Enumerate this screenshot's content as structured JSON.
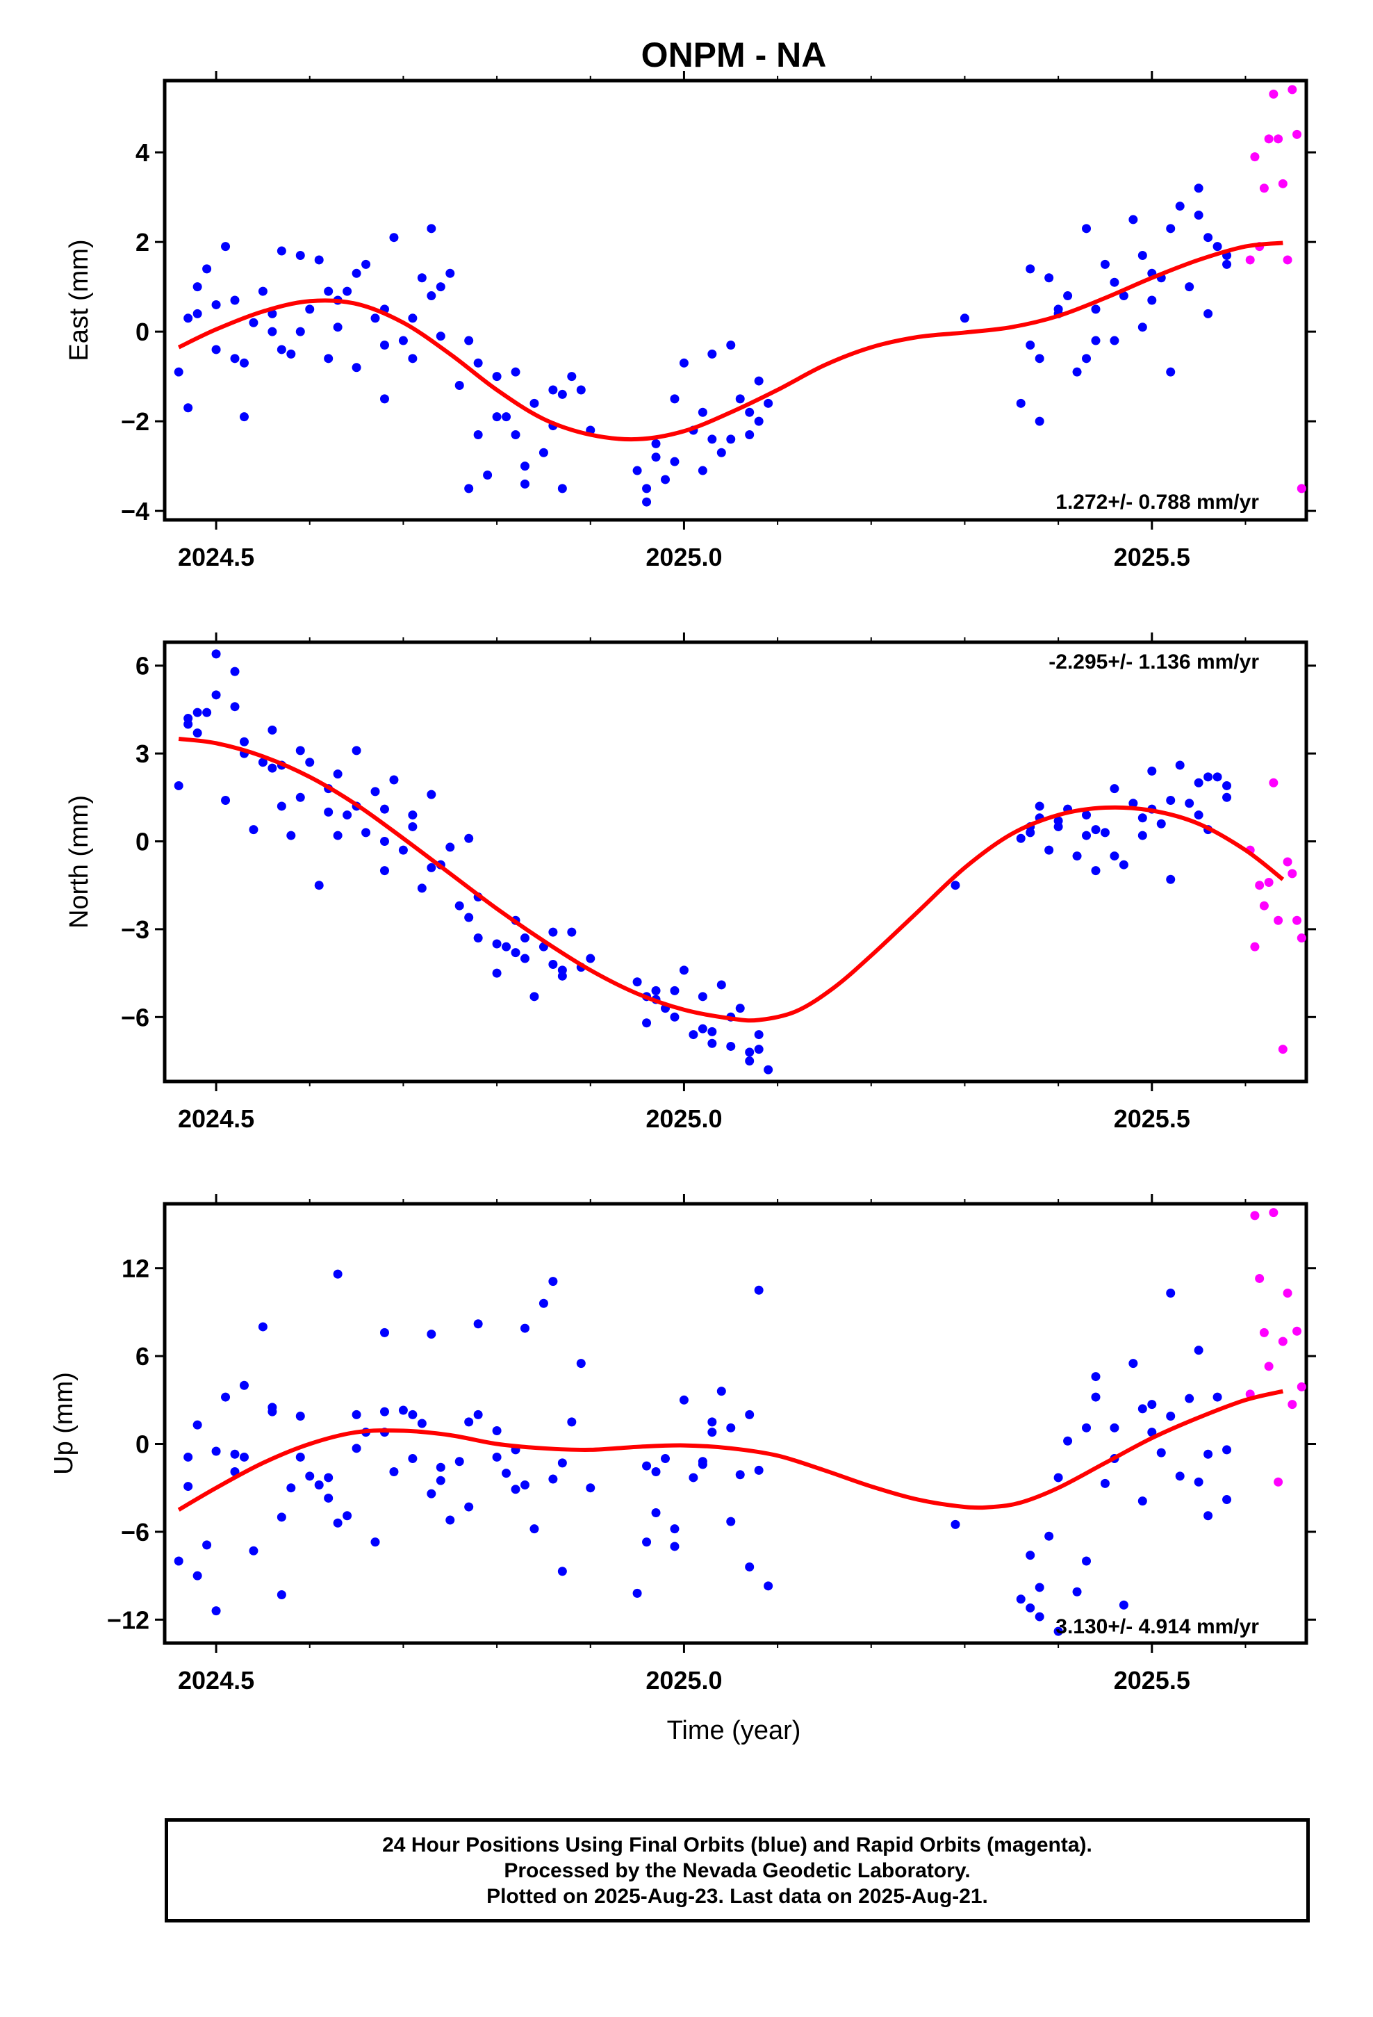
{
  "title": "ONPM - NA",
  "xlabel": "Time (year)",
  "footer": {
    "line1": "24 Hour Positions Using Final Orbits (blue) and Rapid Orbits (magenta).",
    "line2": "Processed by the Nevada Geodetic Laboratory.",
    "line3": "Plotted on 2025-Aug-23. Last data on 2025-Aug-21."
  },
  "colors": {
    "final": "#0000ff",
    "rapid": "#ff00ff",
    "model": "#ff0000"
  },
  "chart_data": [
    {
      "type": "scatter",
      "ylabel": "East (mm)",
      "xlim": [
        2024.445,
        2025.665
      ],
      "ylim": [
        -4.2,
        5.6
      ],
      "x_ticks": [
        2024.5,
        2025.0,
        2025.5
      ],
      "x_tick_labels": [
        "2024.5",
        "2025.0",
        "2025.5"
      ],
      "y_ticks": [
        -4,
        -2,
        0,
        2,
        4
      ],
      "y_tick_labels": [
        "−4",
        "−2",
        "0",
        "2",
        "4"
      ],
      "rate": "1.272+/- 0.788 mm/yr",
      "model": {
        "x": [
          2024.46,
          2024.5,
          2024.55,
          2024.6,
          2024.65,
          2024.7,
          2024.75,
          2024.8,
          2024.85,
          2024.9,
          2024.95,
          2025.0,
          2025.05,
          2025.1,
          2025.15,
          2025.2,
          2025.25,
          2025.3,
          2025.35,
          2025.4,
          2025.45,
          2025.5,
          2025.55,
          2025.6,
          2025.64
        ],
        "y": [
          -0.35,
          0.05,
          0.45,
          0.68,
          0.62,
          0.2,
          -0.5,
          -1.3,
          -1.95,
          -2.3,
          -2.4,
          -2.22,
          -1.8,
          -1.3,
          -0.75,
          -0.35,
          -0.12,
          -0.02,
          0.1,
          0.35,
          0.75,
          1.2,
          1.6,
          1.9,
          1.98
        ]
      },
      "final": {
        "x": [
          2024.46,
          2024.47,
          2024.48,
          2024.49,
          2024.5,
          2024.51,
          2024.52,
          2024.53,
          2024.54,
          2024.55,
          2024.56,
          2024.57,
          2024.58,
          2024.59,
          2024.6,
          2024.61,
          2024.62,
          2024.63,
          2024.64,
          2024.65,
          2024.66,
          2024.67,
          2024.68,
          2024.69,
          2024.7,
          2024.71,
          2024.72,
          2024.73,
          2024.74,
          2024.75,
          2024.76,
          2024.77,
          2024.78,
          2024.79,
          2024.8,
          2024.81,
          2024.82,
          2024.83,
          2024.84,
          2024.85,
          2024.86,
          2024.87,
          2024.88,
          2024.89,
          2024.9,
          2024.95,
          2024.96,
          2024.97,
          2024.98,
          2024.99,
          2025.0,
          2025.01,
          2025.02,
          2025.03,
          2025.04,
          2025.05,
          2025.06,
          2025.07,
          2025.08,
          2025.09,
          2025.3,
          2025.36,
          2025.37,
          2025.38,
          2025.39,
          2025.4,
          2025.41,
          2025.42,
          2025.43,
          2025.44,
          2025.45,
          2025.46,
          2025.47,
          2025.48,
          2025.49,
          2025.5,
          2025.51,
          2025.52,
          2025.53,
          2025.54,
          2025.55,
          2025.56,
          2025.57,
          2025.58,
          2024.47,
          2024.5,
          2024.53,
          2024.56,
          2024.59,
          2024.62,
          2024.65,
          2024.68,
          2024.71,
          2024.74,
          2024.77,
          2024.8,
          2024.83,
          2024.86,
          2024.96,
          2024.99,
          2025.02,
          2025.05,
          2025.08,
          2025.37,
          2025.4,
          2025.43,
          2025.46,
          2025.49,
          2025.52,
          2025.55,
          2025.58,
          2024.48,
          2024.52,
          2024.57,
          2024.63,
          2024.68,
          2024.73,
          2024.78,
          2024.82,
          2024.87,
          2024.97,
          2025.03,
          2025.07,
          2025.38,
          2025.44,
          2025.5,
          2025.56
        ],
        "y": [
          -0.9,
          -1.7,
          0.4,
          1.4,
          -0.4,
          1.9,
          0.7,
          -1.9,
          0.2,
          0.9,
          0.0,
          1.8,
          -0.5,
          1.7,
          0.5,
          1.6,
          -0.6,
          0.1,
          0.9,
          -0.8,
          1.5,
          0.3,
          -1.5,
          2.1,
          -0.2,
          0.3,
          1.2,
          2.3,
          -0.1,
          1.3,
          -1.2,
          -3.5,
          -0.7,
          -3.2,
          -1.0,
          -1.9,
          -0.9,
          -3.4,
          -1.6,
          -2.7,
          -1.3,
          -3.5,
          -1.0,
          -1.3,
          -2.2,
          -3.1,
          -3.5,
          -2.8,
          -3.3,
          -1.5,
          -0.7,
          -2.2,
          -1.8,
          -0.5,
          -2.7,
          -0.3,
          -1.5,
          -2.3,
          -1.1,
          -1.6,
          0.3,
          -1.6,
          1.4,
          -2.0,
          1.2,
          0.4,
          0.8,
          -0.9,
          2.3,
          0.5,
          1.5,
          -0.2,
          0.8,
          2.5,
          1.7,
          0.7,
          1.2,
          -0.9,
          2.8,
          1.0,
          2.6,
          0.4,
          1.9,
          1.5,
          0.3,
          0.6,
          -0.7,
          0.4,
          0.0,
          0.9,
          1.3,
          0.5,
          -0.6,
          1.0,
          -0.2,
          -1.9,
          -3.0,
          -2.1,
          -3.8,
          -2.9,
          -3.1,
          -2.4,
          -2.0,
          -0.3,
          0.5,
          -0.6,
          1.1,
          0.1,
          2.3,
          3.2,
          1.7,
          1.0,
          -0.6,
          -0.4,
          0.7,
          -0.3,
          0.8,
          -2.3,
          -2.3,
          -1.4,
          -2.5,
          -2.4,
          -1.8,
          -0.6,
          -0.2,
          1.3,
          2.1
        ]
      },
      "rapid": {
        "x": [
          2025.605,
          2025.61,
          2025.615,
          2025.62,
          2025.625,
          2025.63,
          2025.635,
          2025.64,
          2025.645,
          2025.65,
          2025.655,
          2025.66
        ],
        "y": [
          1.6,
          3.9,
          1.9,
          3.2,
          4.3,
          5.3,
          4.3,
          3.3,
          1.6,
          5.4,
          4.4,
          -3.5
        ]
      }
    },
    {
      "type": "scatter",
      "ylabel": "North (mm)",
      "xlim": [
        2024.445,
        2025.665
      ],
      "ylim": [
        -8.2,
        6.8
      ],
      "x_ticks": [
        2024.5,
        2025.0,
        2025.5
      ],
      "x_tick_labels": [
        "2024.5",
        "2025.0",
        "2025.5"
      ],
      "y_ticks": [
        -6,
        -3,
        0,
        3,
        6
      ],
      "y_tick_labels": [
        "−6",
        "−3",
        "0",
        "3",
        "6"
      ],
      "rate": "-2.295+/- 1.136 mm/yr",
      "model": {
        "x": [
          2024.46,
          2024.5,
          2024.55,
          2024.6,
          2024.65,
          2024.7,
          2024.75,
          2024.8,
          2024.85,
          2024.9,
          2024.95,
          2025.0,
          2025.05,
          2025.08,
          2025.12,
          2025.16,
          2025.2,
          2025.25,
          2025.3,
          2025.35,
          2025.4,
          2025.45,
          2025.5,
          2025.55,
          2025.6,
          2025.64
        ],
        "y": [
          3.5,
          3.35,
          2.9,
          2.2,
          1.25,
          0.1,
          -1.1,
          -2.3,
          -3.4,
          -4.4,
          -5.2,
          -5.75,
          -6.05,
          -6.1,
          -5.8,
          -5.0,
          -3.9,
          -2.4,
          -0.9,
          0.25,
          0.9,
          1.15,
          1.05,
          0.6,
          -0.3,
          -1.3
        ]
      },
      "final": {
        "x": [
          2024.46,
          2024.47,
          2024.48,
          2024.49,
          2024.5,
          2024.51,
          2024.52,
          2024.53,
          2024.54,
          2024.55,
          2024.56,
          2024.57,
          2024.58,
          2024.59,
          2024.6,
          2024.61,
          2024.62,
          2024.63,
          2024.64,
          2024.65,
          2024.66,
          2024.67,
          2024.68,
          2024.69,
          2024.7,
          2024.71,
          2024.72,
          2024.73,
          2024.74,
          2024.75,
          2024.76,
          2024.77,
          2024.78,
          2024.8,
          2024.81,
          2024.82,
          2024.83,
          2024.84,
          2024.85,
          2024.86,
          2024.87,
          2024.88,
          2024.89,
          2024.9,
          2024.95,
          2024.96,
          2024.97,
          2024.98,
          2024.99,
          2025.0,
          2025.01,
          2025.02,
          2025.03,
          2025.04,
          2025.05,
          2025.06,
          2025.07,
          2025.08,
          2025.09,
          2025.29,
          2025.36,
          2025.37,
          2025.38,
          2025.39,
          2025.4,
          2025.41,
          2025.42,
          2025.43,
          2025.44,
          2025.45,
          2025.46,
          2025.47,
          2025.48,
          2025.49,
          2025.5,
          2025.51,
          2025.52,
          2025.53,
          2025.54,
          2025.55,
          2025.56,
          2025.57,
          2025.58,
          2024.47,
          2024.5,
          2024.53,
          2024.56,
          2024.59,
          2024.62,
          2024.65,
          2024.68,
          2024.71,
          2024.74,
          2024.77,
          2024.8,
          2024.83,
          2024.86,
          2024.96,
          2024.99,
          2025.02,
          2025.05,
          2025.08,
          2025.37,
          2025.4,
          2025.43,
          2025.46,
          2025.49,
          2025.52,
          2025.55,
          2025.58,
          2024.48,
          2024.52,
          2024.57,
          2024.63,
          2024.68,
          2024.73,
          2024.78,
          2024.82,
          2024.87,
          2024.97,
          2025.03,
          2025.07,
          2025.38,
          2025.44,
          2025.5,
          2025.56
        ],
        "y": [
          1.9,
          4.2,
          3.7,
          4.4,
          6.4,
          1.4,
          5.8,
          3.0,
          0.4,
          2.7,
          3.8,
          1.2,
          0.2,
          3.1,
          2.7,
          -1.5,
          1.8,
          2.3,
          0.9,
          3.1,
          0.3,
          1.7,
          -1.0,
          2.1,
          -0.3,
          0.9,
          -1.6,
          1.6,
          -0.8,
          -0.2,
          -2.2,
          0.1,
          -3.3,
          -4.5,
          -3.6,
          -2.7,
          -4.0,
          -5.3,
          -3.6,
          -3.1,
          -4.6,
          -3.1,
          -4.3,
          -4.0,
          -4.8,
          -6.2,
          -5.1,
          -5.7,
          -6.0,
          -4.4,
          -6.6,
          -5.3,
          -6.9,
          -4.9,
          -7.0,
          -5.7,
          -7.2,
          -7.1,
          -7.8,
          -1.5,
          0.1,
          0.5,
          1.2,
          -0.3,
          0.5,
          1.1,
          -0.5,
          0.9,
          -1.0,
          0.3,
          1.8,
          -0.8,
          1.3,
          0.2,
          2.4,
          0.6,
          -1.3,
          2.6,
          1.3,
          2.0,
          0.4,
          2.2,
          1.5,
          4.0,
          5.0,
          3.4,
          2.5,
          1.5,
          1.0,
          1.2,
          0.0,
          0.5,
          -0.8,
          -2.6,
          -3.5,
          -3.3,
          -4.2,
          -5.3,
          -5.1,
          -6.4,
          -6.0,
          -6.6,
          0.3,
          0.7,
          0.2,
          -0.5,
          0.8,
          1.4,
          0.9,
          1.9,
          4.4,
          4.6,
          2.6,
          0.2,
          1.1,
          -0.9,
          -1.9,
          -3.8,
          -4.4,
          -5.4,
          -6.5,
          -7.5,
          0.8,
          0.4,
          1.1,
          2.2
        ]
      },
      "rapid": {
        "x": [
          2025.605,
          2025.61,
          2025.615,
          2025.62,
          2025.625,
          2025.63,
          2025.635,
          2025.64,
          2025.645,
          2025.65,
          2025.655,
          2025.66
        ],
        "y": [
          -0.3,
          -3.6,
          -1.5,
          -2.2,
          -1.4,
          2.0,
          -2.7,
          -7.1,
          -0.7,
          -1.1,
          -2.7,
          -3.3
        ]
      }
    },
    {
      "type": "scatter",
      "ylabel": "Up (mm)",
      "xlim": [
        2024.445,
        2025.665
      ],
      "ylim": [
        -13.6,
        16.4
      ],
      "x_ticks": [
        2024.5,
        2025.0,
        2025.5
      ],
      "x_tick_labels": [
        "2024.5",
        "2025.0",
        "2025.5"
      ],
      "y_ticks": [
        -12,
        -6,
        0,
        6,
        12
      ],
      "y_tick_labels": [
        "−12",
        "−6",
        "0",
        "6",
        "12"
      ],
      "rate": "3.130+/- 4.914 mm/yr",
      "model": {
        "x": [
          2024.46,
          2024.5,
          2024.55,
          2024.6,
          2024.65,
          2024.7,
          2024.75,
          2024.8,
          2024.85,
          2024.9,
          2024.95,
          2025.0,
          2025.05,
          2025.1,
          2025.15,
          2025.2,
          2025.25,
          2025.3,
          2025.33,
          2025.36,
          2025.4,
          2025.45,
          2025.5,
          2025.55,
          2025.6,
          2025.64
        ],
        "y": [
          -4.5,
          -3.0,
          -1.3,
          0.0,
          0.8,
          0.9,
          0.6,
          0.0,
          -0.3,
          -0.4,
          -0.2,
          -0.1,
          -0.3,
          -0.8,
          -1.8,
          -2.9,
          -3.8,
          -4.3,
          -4.3,
          -4.0,
          -3.0,
          -1.3,
          0.4,
          1.8,
          3.0,
          3.6
        ]
      },
      "final": {
        "x": [
          2024.46,
          2024.47,
          2024.48,
          2024.49,
          2024.5,
          2024.51,
          2024.52,
          2024.53,
          2024.54,
          2024.55,
          2024.56,
          2024.57,
          2024.58,
          2024.59,
          2024.6,
          2024.61,
          2024.62,
          2024.63,
          2024.64,
          2024.65,
          2024.66,
          2024.67,
          2024.68,
          2024.69,
          2024.7,
          2024.71,
          2024.72,
          2024.73,
          2024.74,
          2024.75,
          2024.76,
          2024.77,
          2024.78,
          2024.8,
          2024.81,
          2024.82,
          2024.83,
          2024.84,
          2024.85,
          2024.86,
          2024.87,
          2024.88,
          2024.89,
          2024.9,
          2024.95,
          2024.96,
          2024.97,
          2024.98,
          2024.99,
          2025.0,
          2025.01,
          2025.02,
          2025.03,
          2025.04,
          2025.05,
          2025.06,
          2025.07,
          2025.08,
          2025.09,
          2025.29,
          2025.36,
          2025.37,
          2025.38,
          2025.39,
          2025.4,
          2025.41,
          2025.42,
          2025.43,
          2025.44,
          2025.45,
          2025.46,
          2025.47,
          2025.48,
          2025.49,
          2025.5,
          2025.51,
          2025.52,
          2025.53,
          2025.54,
          2025.55,
          2025.56,
          2025.57,
          2025.58,
          2024.47,
          2024.5,
          2024.53,
          2024.56,
          2024.59,
          2024.62,
          2024.65,
          2024.68,
          2024.71,
          2024.74,
          2024.77,
          2024.8,
          2024.83,
          2024.86,
          2024.96,
          2024.99,
          2025.02,
          2025.05,
          2025.08,
          2025.37,
          2025.4,
          2025.43,
          2025.46,
          2025.49,
          2025.52,
          2025.55,
          2025.58,
          2024.48,
          2024.52,
          2024.57,
          2024.63,
          2024.68,
          2024.73,
          2024.78,
          2024.82,
          2024.87,
          2024.97,
          2025.03,
          2025.07,
          2025.38,
          2025.44,
          2025.5,
          2025.56
        ],
        "y": [
          -8.0,
          -2.9,
          1.3,
          -6.9,
          -11.4,
          3.2,
          -0.7,
          4.0,
          -7.3,
          8.0,
          2.2,
          -10.3,
          -3.0,
          -0.9,
          -2.2,
          -2.8,
          -3.7,
          11.6,
          -4.9,
          -0.3,
          0.8,
          -6.7,
          7.6,
          -1.9,
          2.3,
          -1.0,
          1.4,
          7.5,
          -1.6,
          -5.2,
          -1.2,
          -4.3,
          8.2,
          -0.9,
          -2.0,
          -3.1,
          7.9,
          -5.8,
          9.6,
          11.1,
          -8.7,
          1.5,
          5.5,
          -3.0,
          -10.2,
          -6.7,
          -4.7,
          -1.0,
          -5.8,
          3.0,
          -2.3,
          -1.2,
          0.8,
          3.6,
          -5.3,
          -2.1,
          -8.4,
          10.5,
          -9.7,
          -5.5,
          -10.6,
          -11.2,
          -9.8,
          -6.3,
          -12.8,
          0.2,
          -10.1,
          -8.0,
          4.6,
          -2.7,
          1.1,
          -11.0,
          5.5,
          -3.9,
          0.8,
          -0.6,
          10.3,
          -2.2,
          3.1,
          6.4,
          -0.7,
          3.2,
          -3.8,
          -0.9,
          -0.5,
          -0.9,
          2.5,
          1.9,
          -2.3,
          2.0,
          0.8,
          2.0,
          -2.5,
          1.5,
          0.9,
          -2.8,
          -2.4,
          -1.5,
          -7.0,
          -1.4,
          1.1,
          -1.8,
          -7.6,
          -2.3,
          1.1,
          -1.0,
          2.4,
          1.9,
          -2.6,
          -0.4,
          -9.0,
          -1.9,
          -5.0,
          -5.4,
          2.2,
          -3.4,
          2.0,
          -0.4,
          -1.3,
          -1.9,
          1.5,
          2.0,
          -11.8,
          3.2,
          2.7,
          -4.9
        ]
      },
      "rapid": {
        "x": [
          2025.605,
          2025.61,
          2025.615,
          2025.62,
          2025.625,
          2025.63,
          2025.635,
          2025.64,
          2025.645,
          2025.65,
          2025.655,
          2025.66
        ],
        "y": [
          3.4,
          15.6,
          11.3,
          7.6,
          5.3,
          15.8,
          -2.6,
          7.0,
          10.3,
          2.7,
          7.7,
          3.9
        ]
      }
    }
  ]
}
